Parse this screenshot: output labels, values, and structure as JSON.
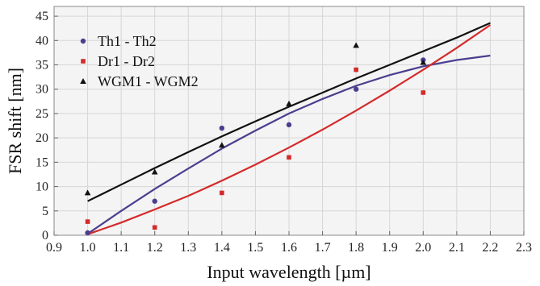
{
  "chart_data": {
    "type": "scatter",
    "xlabel": "Input wavelength [µm]",
    "ylabel": "FSR shift [nm]",
    "xlim": [
      0.9,
      2.3
    ],
    "ylim": [
      0,
      47
    ],
    "x_ticks": [
      0.9,
      1.0,
      1.1,
      1.2,
      1.3,
      1.4,
      1.5,
      1.6,
      1.7,
      1.8,
      1.9,
      2.0,
      2.1,
      2.2,
      2.3
    ],
    "x_tick_labels": [
      "0.9",
      "1.0",
      "1.1",
      "1.2",
      "1.3",
      "1.4",
      "1.5",
      "1.6",
      "1.7",
      "1.8",
      "1.9",
      "2.0",
      "2.1",
      "2.2",
      "2.3"
    ],
    "y_ticks": [
      0,
      5,
      10,
      15,
      20,
      25,
      30,
      35,
      40,
      45
    ],
    "y_tick_labels": [
      "0",
      "5",
      "10",
      "15",
      "20",
      "25",
      "30",
      "35",
      "40",
      "45"
    ],
    "grid": true,
    "legend_position": "top-left",
    "series": [
      {
        "name": "Th1 - Th2",
        "marker": "circle",
        "color": "#4a3f8f",
        "points": [
          [
            1.0,
            0.5
          ],
          [
            1.2,
            7.0
          ],
          [
            1.4,
            22.0
          ],
          [
            1.6,
            22.7
          ],
          [
            1.8,
            30.0
          ],
          [
            2.0,
            36.0
          ]
        ],
        "fit": [
          [
            1.0,
            0.3
          ],
          [
            1.1,
            5.0
          ],
          [
            1.2,
            9.5
          ],
          [
            1.3,
            13.7
          ],
          [
            1.4,
            17.8
          ],
          [
            1.5,
            21.5
          ],
          [
            1.6,
            25.0
          ],
          [
            1.7,
            28.0
          ],
          [
            1.8,
            30.7
          ],
          [
            1.9,
            32.9
          ],
          [
            2.0,
            34.7
          ],
          [
            2.1,
            36.0
          ],
          [
            2.2,
            36.9
          ]
        ]
      },
      {
        "name": "Dr1 - Dr2",
        "marker": "square",
        "color": "#d42a2a",
        "points": [
          [
            1.0,
            2.8
          ],
          [
            1.2,
            1.6
          ],
          [
            1.4,
            8.7
          ],
          [
            1.6,
            16.0
          ],
          [
            1.8,
            34.0
          ],
          [
            2.0,
            29.3
          ]
        ],
        "fit": [
          [
            1.0,
            0.2
          ],
          [
            1.1,
            2.6
          ],
          [
            1.2,
            5.3
          ],
          [
            1.3,
            8.1
          ],
          [
            1.4,
            11.2
          ],
          [
            1.5,
            14.5
          ],
          [
            1.6,
            18.0
          ],
          [
            1.7,
            21.7
          ],
          [
            1.8,
            25.6
          ],
          [
            1.9,
            29.7
          ],
          [
            2.0,
            34.0
          ],
          [
            2.1,
            38.5
          ],
          [
            2.2,
            43.2
          ]
        ]
      },
      {
        "name": "WGM1 - WGM2",
        "marker": "triangle",
        "color": "#111111",
        "points": [
          [
            1.0,
            8.7
          ],
          [
            1.2,
            13.0
          ],
          [
            1.4,
            18.5
          ],
          [
            1.6,
            27.0
          ],
          [
            1.8,
            39.0
          ],
          [
            2.0,
            35.5
          ]
        ],
        "fit": [
          [
            1.0,
            7.0
          ],
          [
            1.1,
            10.4
          ],
          [
            1.2,
            13.8
          ],
          [
            1.3,
            17.1
          ],
          [
            1.4,
            20.3
          ],
          [
            1.5,
            23.4
          ],
          [
            1.6,
            26.4
          ],
          [
            1.7,
            29.3
          ],
          [
            1.8,
            32.2
          ],
          [
            1.9,
            35.0
          ],
          [
            2.0,
            37.8
          ],
          [
            2.1,
            40.6
          ],
          [
            2.2,
            43.6
          ]
        ]
      }
    ]
  }
}
